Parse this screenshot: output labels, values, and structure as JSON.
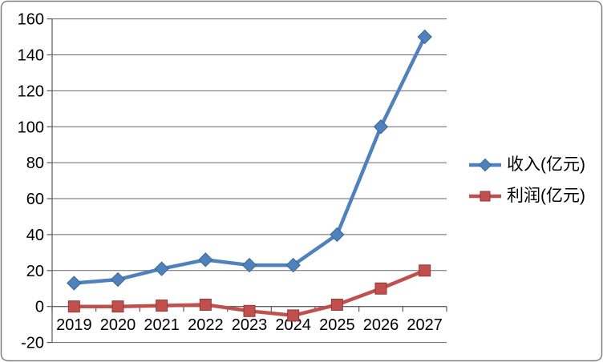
{
  "frame": {
    "background": "#ffffff",
    "border_color": "#7f7f7f"
  },
  "chart_data": {
    "type": "line",
    "title": "",
    "xlabel": "",
    "ylabel": "",
    "categories": [
      "2019",
      "2020",
      "2021",
      "2022",
      "2023",
      "2024",
      "2025",
      "2026",
      "2027"
    ],
    "series": [
      {
        "id": "revenue",
        "name": "收入(亿元)",
        "color": "#4f81bd",
        "marker": "diamond",
        "marker_edge": "#3a6791",
        "values": [
          13,
          15,
          21,
          26,
          23,
          23,
          40,
          100,
          150
        ]
      },
      {
        "id": "profit",
        "name": "利润(亿元)",
        "color": "#c0504d",
        "marker": "square",
        "marker_edge": "#943634",
        "values": [
          0,
          0,
          0.5,
          1,
          -2.5,
          -5,
          1,
          10,
          20
        ]
      }
    ],
    "ylim": [
      -20,
      160
    ],
    "yticks": [
      -20,
      0,
      20,
      40,
      60,
      80,
      100,
      120,
      140,
      160
    ],
    "grid": true,
    "legend_position": "right",
    "axis_color": "#595959",
    "gridline_color": "#666666",
    "text_color": "#000000"
  }
}
